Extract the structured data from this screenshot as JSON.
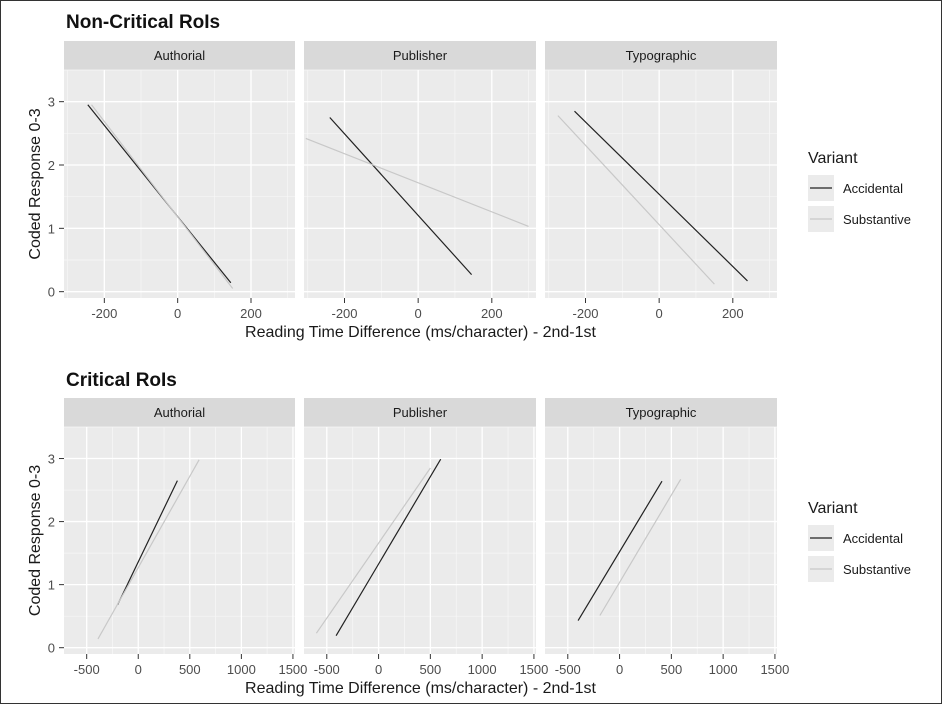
{
  "colors": {
    "panel_bg": "#ebebeb",
    "strip_bg": "#d9d9d9",
    "grid_major": "#ffffff",
    "accidental": "#222222",
    "substantive": "#c8c8c8"
  },
  "chart_data": [
    {
      "type": "line",
      "title": "Non-Critical RoIs",
      "xlabel": "Reading Time Difference (ms/character) - 2nd-1st",
      "ylabel": "Coded Response 0-3",
      "xlim": [
        -310,
        320
      ],
      "ylim": [
        -0.1,
        3.5
      ],
      "x_ticks": [
        -200,
        0,
        200
      ],
      "y_ticks": [
        0,
        1,
        2,
        3
      ],
      "legend_title": "Variant",
      "legend_position": "right",
      "series_names": [
        "Accidental",
        "Substantive"
      ],
      "facets": [
        {
          "label": "Authorial",
          "series": [
            {
              "name": "Accidental",
              "x": [
                -245,
                145
              ],
              "y": [
                2.95,
                0.14
              ]
            },
            {
              "name": "Substantive",
              "x": [
                -235,
                150
              ],
              "y": [
                2.95,
                0.05
              ]
            }
          ]
        },
        {
          "label": "Publisher",
          "series": [
            {
              "name": "Accidental",
              "x": [
                -240,
                145
              ],
              "y": [
                2.75,
                0.27
              ]
            },
            {
              "name": "Substantive",
              "x": [
                -305,
                300
              ],
              "y": [
                2.42,
                1.03
              ]
            }
          ]
        },
        {
          "label": "Typographic",
          "series": [
            {
              "name": "Accidental",
              "x": [
                -230,
                240
              ],
              "y": [
                2.85,
                0.17
              ]
            },
            {
              "name": "Substantive",
              "x": [
                -275,
                150
              ],
              "y": [
                2.78,
                0.12
              ]
            }
          ]
        }
      ]
    },
    {
      "type": "line",
      "title": "Critical RoIs",
      "xlabel": "Reading Time Difference (ms/character) - 2nd-1st",
      "ylabel": "Coded Response 0-3",
      "xlim": [
        -720,
        1520
      ],
      "ylim": [
        -0.1,
        3.5
      ],
      "x_ticks": [
        -500,
        0,
        500,
        1000,
        1500
      ],
      "y_ticks": [
        0,
        1,
        2,
        3
      ],
      "legend_title": "Variant",
      "legend_position": "right",
      "series_names": [
        "Accidental",
        "Substantive"
      ],
      "facets": [
        {
          "label": "Authorial",
          "series": [
            {
              "name": "Accidental",
              "x": [
                -200,
                380
              ],
              "y": [
                0.68,
                2.65
              ]
            },
            {
              "name": "Substantive",
              "x": [
                -390,
                590
              ],
              "y": [
                0.14,
                2.98
              ]
            }
          ]
        },
        {
          "label": "Publisher",
          "series": [
            {
              "name": "Accidental",
              "x": [
                -410,
                600
              ],
              "y": [
                0.19,
                2.99
              ]
            },
            {
              "name": "Substantive",
              "x": [
                -600,
                500
              ],
              "y": [
                0.23,
                2.85
              ]
            }
          ]
        },
        {
          "label": "Typographic",
          "series": [
            {
              "name": "Accidental",
              "x": [
                -400,
                410
              ],
              "y": [
                0.43,
                2.64
              ]
            },
            {
              "name": "Substantive",
              "x": [
                -190,
                590
              ],
              "y": [
                0.51,
                2.67
              ]
            }
          ]
        }
      ]
    }
  ]
}
